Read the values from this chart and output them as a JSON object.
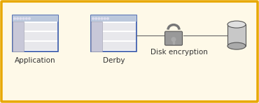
{
  "bg_color": "#FEF9E8",
  "border_color": "#E8A800",
  "title_color": "#333333",
  "app_label": "Application",
  "derby_label": "Derby",
  "disk_enc_label": "Disk encryption",
  "window_border_color": "#3355AA",
  "window_bg": "#FFFFFF",
  "window_titlebar_color": "#BBC8DC",
  "line_color": "#666666",
  "lock_body_color": "#999999",
  "lock_shackle_color": "#777777",
  "lock_highlight_color": "#AAAAAA",
  "cylinder_body_color": "#C8C8C8",
  "cylinder_top_color": "#E0E0E0",
  "cylinder_bottom_color": "#AAAAAA",
  "label_fontsize": 7.5,
  "fig_width": 3.7,
  "fig_height": 1.48
}
